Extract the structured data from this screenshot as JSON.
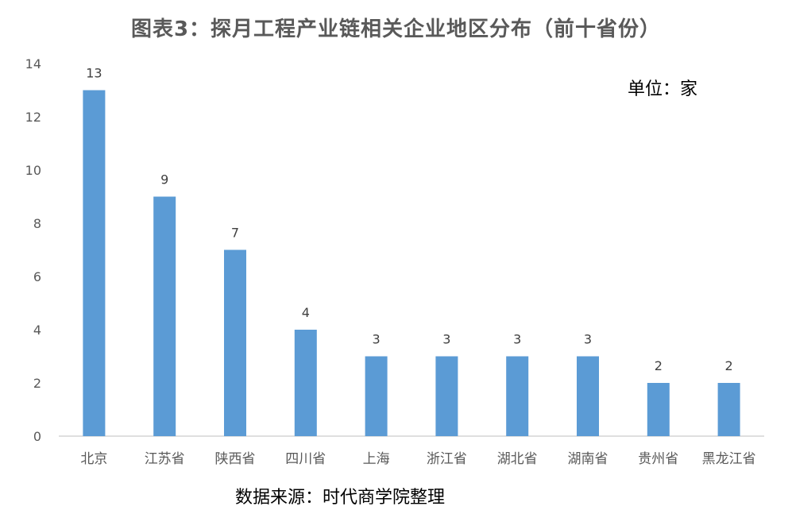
{
  "title": "图表3：探月工程产业链相关企业地区分布（前十省份）",
  "unit_note": "单位：家",
  "source_note": "数据来源：时代商学院整理",
  "chart_data": {
    "type": "bar",
    "categories": [
      "北京",
      "江苏省",
      "陕西省",
      "四川省",
      "上海",
      "浙江省",
      "湖北省",
      "湖南省",
      "贵州省",
      "黑龙江省"
    ],
    "values": [
      13,
      9,
      7,
      4,
      3,
      3,
      3,
      3,
      2,
      2
    ],
    "yticks": [
      0,
      2,
      4,
      6,
      8,
      10,
      12,
      14
    ],
    "ylim": [
      0,
      14
    ],
    "grid": false,
    "legend": "none",
    "bar_color": "#5B9BD5",
    "data_labels": true
  }
}
